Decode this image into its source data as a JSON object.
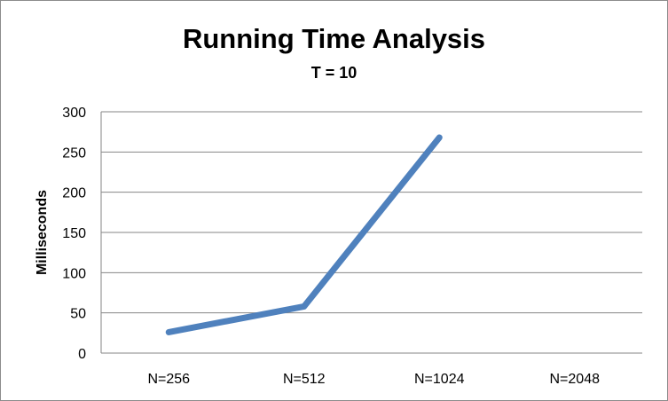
{
  "chart_data": {
    "type": "line",
    "title": "Running Time Analysis",
    "subtitle": "T = 10",
    "xlabel": "",
    "ylabel": "Milliseconds",
    "categories": [
      "N=256",
      "N=512",
      "N=1024",
      "N=2048"
    ],
    "series": [
      {
        "values": [
          26,
          58,
          268,
          null
        ]
      }
    ],
    "ylim": [
      0,
      300
    ],
    "yticks": [
      0,
      50,
      100,
      150,
      200,
      250,
      300
    ],
    "grid": true,
    "legend": "none",
    "line_color": "#4f81bd",
    "grid_color": "#868686"
  }
}
